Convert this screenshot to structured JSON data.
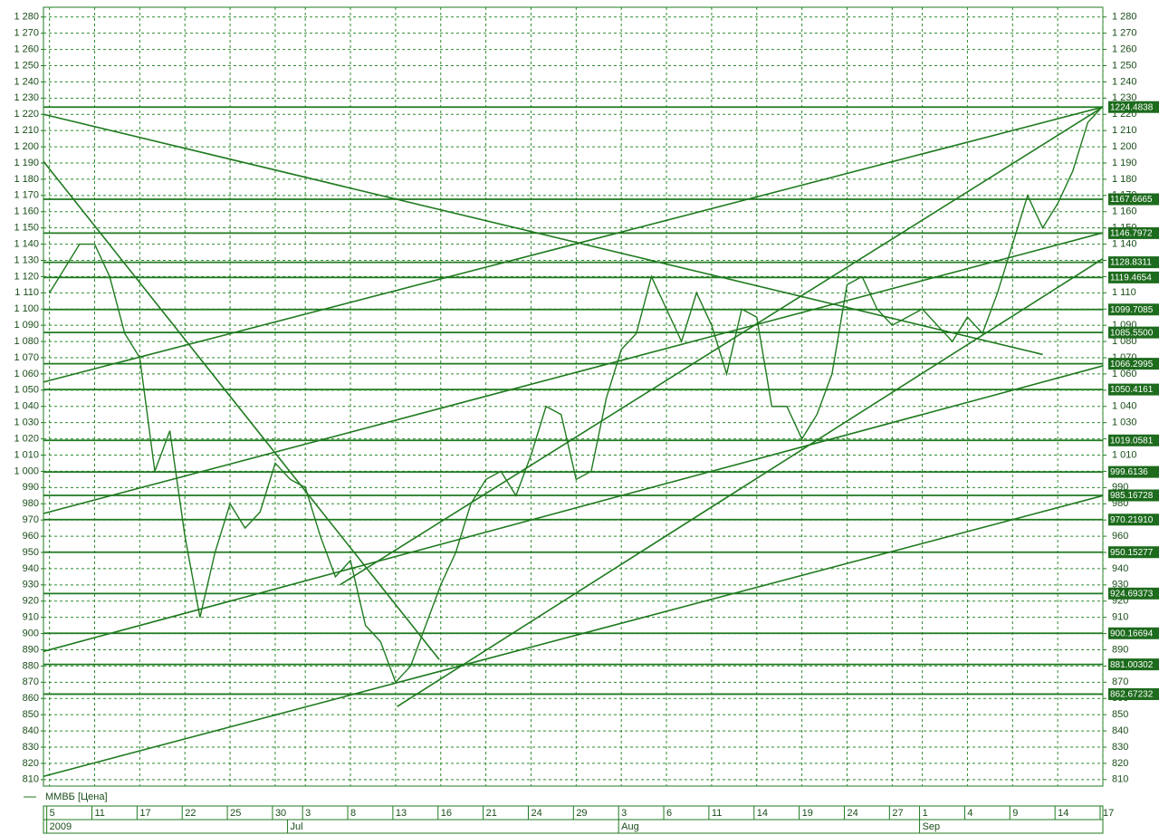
{
  "chart_data": {
    "type": "line",
    "grid": true,
    "categories": [
      "5",
      null,
      null,
      "11",
      null,
      null,
      "17",
      null,
      null,
      "22",
      null,
      null,
      "25",
      null,
      null,
      "30",
      null,
      "3",
      null,
      null,
      "8",
      null,
      null,
      "13",
      null,
      null,
      "16",
      null,
      null,
      "21",
      null,
      null,
      "24",
      null,
      null,
      "29",
      null,
      null,
      "3",
      null,
      null,
      "6",
      null,
      null,
      "11",
      null,
      null,
      "14",
      null,
      null,
      "19",
      null,
      null,
      "24",
      null,
      null,
      "27",
      null,
      "1",
      null,
      null,
      "4",
      null,
      null,
      "9",
      null,
      null,
      "14",
      null,
      null,
      "17"
    ],
    "months": [
      "2009",
      null,
      null,
      null,
      null,
      null,
      null,
      null,
      null,
      null,
      null,
      null,
      null,
      null,
      null,
      null,
      "Jul",
      null,
      null,
      null,
      null,
      null,
      null,
      null,
      null,
      null,
      null,
      null,
      null,
      null,
      null,
      null,
      null,
      null,
      null,
      null,
      null,
      null,
      "Aug",
      null,
      null,
      null,
      null,
      null,
      null,
      null,
      null,
      null,
      null,
      null,
      null,
      null,
      null,
      null,
      null,
      null,
      null,
      null,
      "Sep",
      null,
      null,
      null,
      null,
      null,
      null,
      null,
      null,
      null,
      null,
      null,
      null
    ],
    "series": [
      {
        "name": "ММВБ [Цена]",
        "color": "#1f7a1f",
        "values": [
          1110,
          1125,
          1140,
          1140,
          1120,
          1085,
          1070,
          1000,
          1025,
          960,
          910,
          950,
          980,
          965,
          975,
          1005,
          995,
          990,
          960,
          935,
          945,
          905,
          895,
          870,
          880,
          905,
          930,
          950,
          980,
          995,
          1000,
          985,
          1010,
          1040,
          1035,
          995,
          1000,
          1045,
          1075,
          1085,
          1120,
          1100,
          1080,
          1110,
          1090,
          1060,
          1100,
          1095,
          1040,
          1040,
          1020,
          1035,
          1060,
          1115,
          1120,
          1100,
          1090,
          1095,
          1100,
          1090,
          1080,
          1095,
          1085,
          1110,
          1140,
          1170,
          1150,
          1165,
          1185,
          1215,
          1225
        ]
      }
    ],
    "xlim": [
      -0.4,
      70
    ],
    "ylim": [
      806,
      1286
    ],
    "yticks": [
      810,
      820,
      830,
      840,
      850,
      860,
      870,
      880,
      890,
      900,
      910,
      920,
      930,
      940,
      950,
      960,
      970,
      980,
      990,
      {
        "value": 1000,
        "label": "1 000"
      },
      {
        "value": 1010,
        "label": "1 010"
      },
      {
        "value": 1020,
        "label": "1 020"
      },
      {
        "value": 1030,
        "label": "1 030"
      },
      {
        "value": 1040,
        "label": "1 040"
      },
      {
        "value": 1050,
        "label": "1 050"
      },
      {
        "value": 1060,
        "label": "1 060"
      },
      {
        "value": 1070,
        "label": "1 070"
      },
      {
        "value": 1080,
        "label": "1 080"
      },
      {
        "value": 1090,
        "label": "1 090"
      },
      {
        "value": 1100,
        "label": "1 100"
      },
      {
        "value": 1110,
        "label": "1 110"
      },
      {
        "value": 1120,
        "label": "1 120"
      },
      {
        "value": 1130,
        "label": "1 130"
      },
      {
        "value": 1140,
        "label": "1 140"
      },
      {
        "value": 1150,
        "label": "1 150"
      },
      {
        "value": 1160,
        "label": "1 160"
      },
      {
        "value": 1170,
        "label": "1 170"
      },
      {
        "value": 1180,
        "label": "1 180"
      },
      {
        "value": 1190,
        "label": "1 190"
      },
      {
        "value": 1200,
        "label": "1 200"
      },
      {
        "value": 1210,
        "label": "1 210"
      },
      {
        "value": 1220,
        "label": "1 220"
      },
      {
        "value": 1230,
        "label": "1 230"
      },
      {
        "value": 1240,
        "label": "1 240"
      },
      {
        "value": 1250,
        "label": "1 250"
      },
      {
        "value": 1260,
        "label": "1 260"
      },
      {
        "value": 1270,
        "label": "1 270"
      },
      {
        "value": 1280,
        "label": "1 280"
      }
    ],
    "levels": [
      1224.4838,
      1167.6665,
      1146.7972,
      1128.8311,
      1119.4654,
      1099.7085,
      {
        "value": 1085.55,
        "label": "1085.5500"
      },
      1066.2995,
      1050.4161,
      1019.0581,
      999.6136,
      985.16728,
      {
        "value": 970.2191,
        "label": "970.21910"
      },
      950.15277,
      924.69373,
      900.16694,
      881.00302,
      862.67232
    ],
    "trendlines": [
      {
        "start": [
          -0.4,
          1220
        ],
        "end": [
          66,
          1072
        ]
      },
      {
        "start": [
          -0.4,
          1191
        ],
        "end": [
          25.9,
          884
        ]
      },
      {
        "start": [
          -0.4,
          1055
        ],
        "end": [
          70,
          1224.5
        ]
      },
      {
        "start": [
          -0.4,
          974
        ],
        "end": [
          70,
          1147
        ]
      },
      {
        "start": [
          -0.4,
          889
        ],
        "end": [
          70,
          1065
        ]
      },
      {
        "start": [
          -0.4,
          812
        ],
        "end": [
          70,
          985
        ]
      },
      {
        "start": [
          23.1,
          855
        ],
        "end": [
          70,
          1131
        ]
      },
      {
        "start": [
          19.3,
          930
        ],
        "end": [
          70,
          1224.5
        ]
      }
    ]
  }
}
